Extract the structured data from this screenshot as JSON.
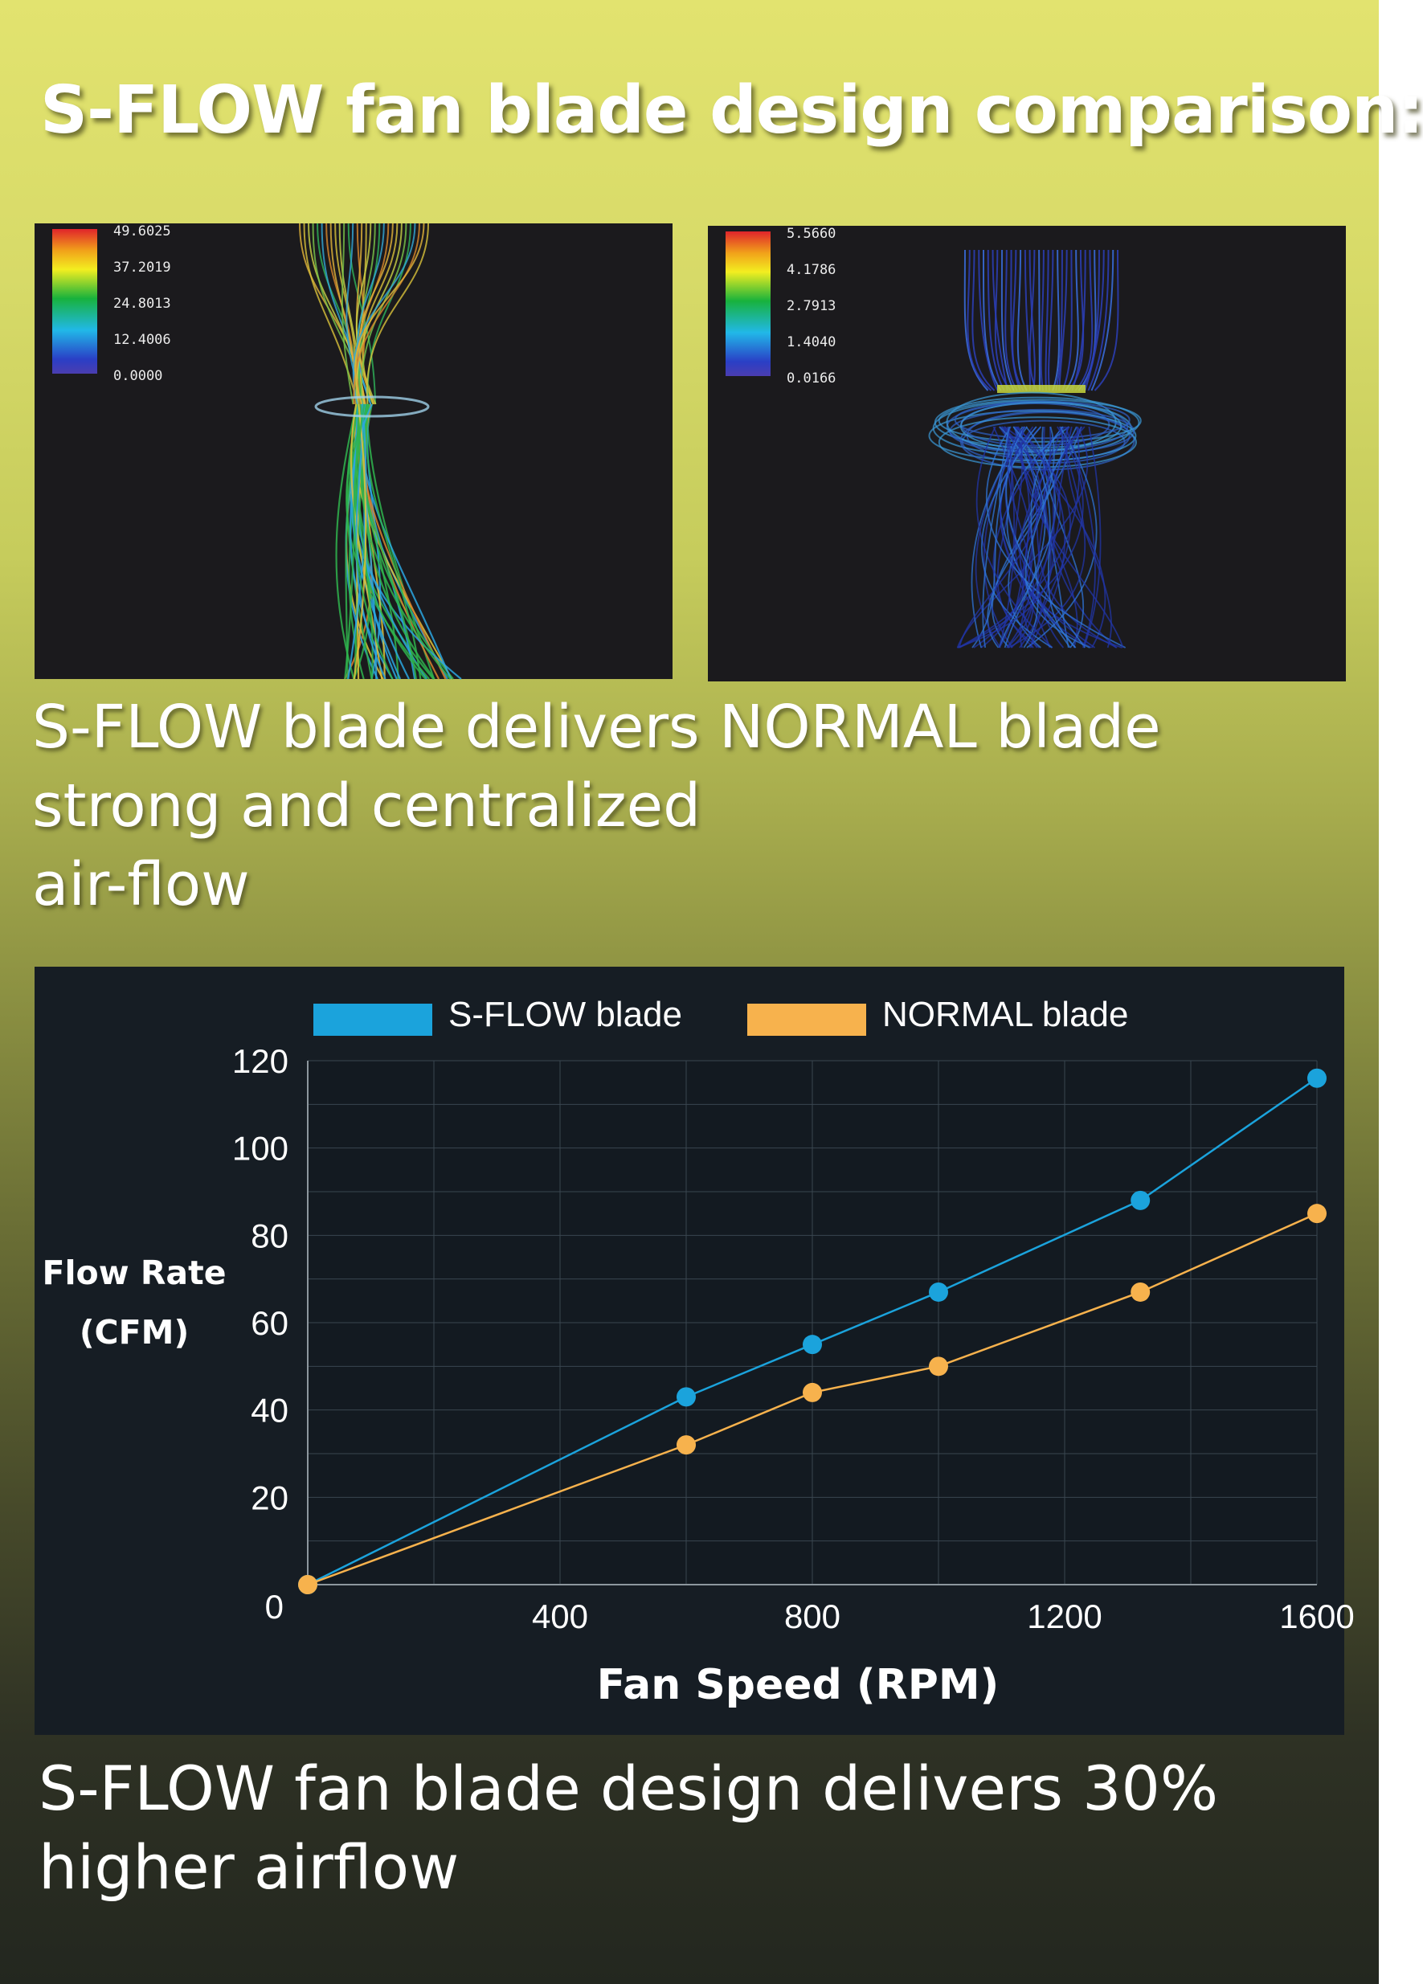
{
  "title": "S-FLOW fan blade design comparison:",
  "simulations": {
    "left": {
      "scale_labels": [
        "49.6025",
        "37.2019",
        "24.8013",
        "12.4006",
        "0.0000"
      ],
      "caption_lines": [
        "S-FLOW blade delivers",
        "strong and centralized",
        "air-flow"
      ]
    },
    "right": {
      "scale_labels": [
        "5.5660",
        "4.1786",
        "2.7913",
        "1.4040",
        "0.0166"
      ],
      "caption_lines": [
        "NORMAL blade"
      ]
    }
  },
  "chart_data": {
    "type": "line",
    "xlabel": "Fan Speed (RPM)",
    "ylabel_lines": [
      "Flow Rate",
      "(CFM)"
    ],
    "xlim": [
      0,
      1600
    ],
    "ylim": [
      0,
      120
    ],
    "x_ticks": [
      400,
      800,
      1200,
      1600
    ],
    "y_ticks": [
      0,
      20,
      40,
      60,
      80,
      100,
      120
    ],
    "grid": true,
    "legend_position": "top",
    "series": [
      {
        "name": "S-FLOW blade",
        "color": "#1ba3dc",
        "points": [
          [
            0,
            0
          ],
          [
            600,
            43
          ],
          [
            800,
            55
          ],
          [
            1000,
            67
          ],
          [
            1320,
            88
          ],
          [
            1600,
            116
          ]
        ]
      },
      {
        "name": "NORMAL blade",
        "color": "#f7b24d",
        "points": [
          [
            0,
            0
          ],
          [
            600,
            32
          ],
          [
            800,
            44
          ],
          [
            1000,
            50
          ],
          [
            1320,
            67
          ],
          [
            1600,
            85
          ]
        ]
      }
    ]
  },
  "bottom_caption_lines": [
    "S-FLOW fan blade design delivers 30%",
    "higher airflow"
  ]
}
